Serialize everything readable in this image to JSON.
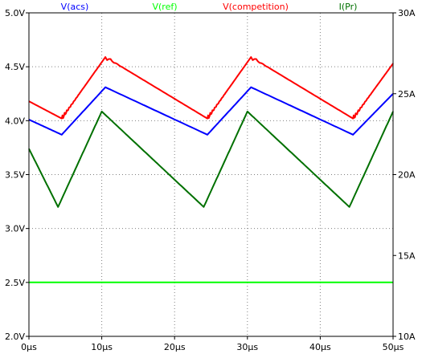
{
  "chart_data": {
    "type": "line",
    "title": "",
    "xlabel": "",
    "ylabel": "",
    "x_unit": "µs",
    "xlim": [
      0,
      50
    ],
    "ylim_left": [
      2.0,
      5.0
    ],
    "ylim_right": [
      10,
      30
    ],
    "grid": "dotted",
    "x_ticks": [
      "0µs",
      "10µs",
      "20µs",
      "30µs",
      "40µs",
      "50µs"
    ],
    "x_tick_values": [
      0,
      10,
      20,
      30,
      40,
      50
    ],
    "y_left_ticks": [
      "2.0V",
      "2.5V",
      "3.0V",
      "3.5V",
      "4.0V",
      "4.5V",
      "5.0V"
    ],
    "y_left_tick_values": [
      2.0,
      2.5,
      3.0,
      3.5,
      4.0,
      4.5,
      5.0
    ],
    "y_right_ticks": [
      "10A",
      "15A",
      "20A",
      "25A",
      "30A"
    ],
    "y_right_tick_values": [
      10,
      15,
      20,
      25,
      30
    ],
    "series": [
      {
        "name": "V(acs)",
        "color": "#0000ff",
        "axis": "left",
        "x": [
          0,
          4.5,
          10.5,
          24.5,
          30.5,
          44.5,
          50
        ],
        "values": [
          4.01,
          3.87,
          4.31,
          3.87,
          4.31,
          3.87,
          4.25
        ]
      },
      {
        "name": "V(ref)",
        "color": "#00ff00",
        "axis": "left",
        "x": [
          0,
          50
        ],
        "values": [
          2.5,
          2.5
        ]
      },
      {
        "name": "V(competition)",
        "color": "#ff0000",
        "axis": "left",
        "ripple": true,
        "x": [
          0,
          4.5,
          10.5,
          24.5,
          30.5,
          44.5,
          50
        ],
        "values": [
          4.18,
          4.02,
          4.59,
          4.02,
          4.59,
          4.02,
          4.53
        ]
      },
      {
        "name": "I(Pr)",
        "color": "#007000",
        "axis": "right",
        "x": [
          0,
          4,
          10,
          24,
          30,
          44,
          50
        ],
        "values": [
          21.6,
          18.0,
          23.9,
          18.0,
          23.9,
          18.0,
          23.9
        ]
      }
    ]
  }
}
